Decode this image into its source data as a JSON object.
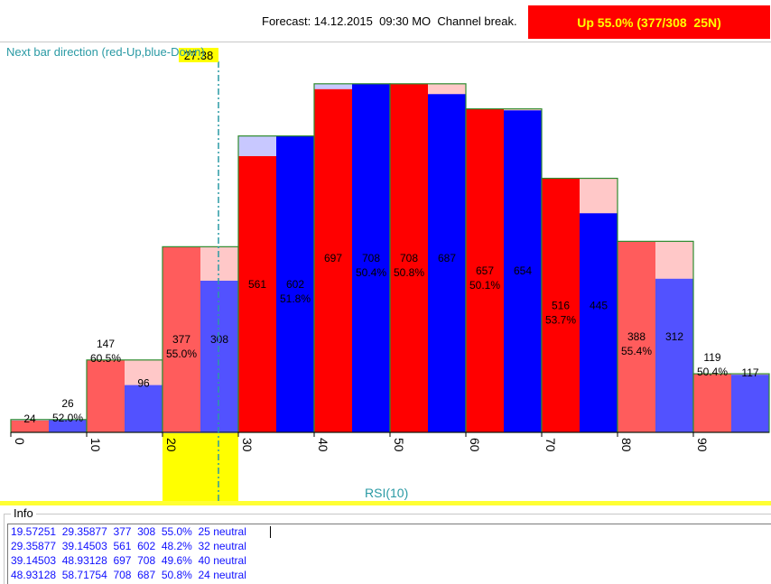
{
  "header": {
    "forecast_text": "Forecast: 14.12.2015  09:30 MO  Channel break.",
    "signal_text": "Up 55.0% (377/308  25N)",
    "signal_color": "#ff0000",
    "signal_text_color": "#ffff00"
  },
  "chart_data": {
    "type": "bar",
    "title": "Next bar direction (red-Up,blue-Down)",
    "xlabel": "RSI(10)",
    "ylabel": "",
    "xlim": [
      0,
      100
    ],
    "ylim": [
      0,
      715
    ],
    "x_ticks": [
      "0",
      "10",
      "20",
      "30",
      "40",
      "50",
      "60",
      "70",
      "80",
      "90"
    ],
    "current_marker": {
      "value": 27.38,
      "label": "27.38"
    },
    "bins": [
      {
        "x0": 0,
        "x1": 10,
        "up": 24,
        "down": 26,
        "up_label": "24",
        "down_label": "26",
        "pct_label": "52.0%",
        "pct_side": "down",
        "weak": true
      },
      {
        "x0": 10,
        "x1": 20,
        "up": 147,
        "down": 96,
        "up_label": "147",
        "down_label": "96",
        "pct_label": "60.5%",
        "pct_side": "up",
        "weak": true
      },
      {
        "x0": 20,
        "x1": 30,
        "up": 377,
        "down": 308,
        "up_label": "377",
        "down_label": "308",
        "pct_label": "55.0%",
        "pct_side": "up",
        "weak": true
      },
      {
        "x0": 30,
        "x1": 40,
        "up": 561,
        "down": 602,
        "up_label": "561",
        "down_label": "602",
        "pct_label": "51.8%",
        "pct_side": "down",
        "weak": false
      },
      {
        "x0": 40,
        "x1": 50,
        "up": 697,
        "down": 708,
        "up_label": "697",
        "down_label": "708",
        "pct_label": "50.4%",
        "pct_side": "down",
        "weak": false
      },
      {
        "x0": 50,
        "x1": 60,
        "up": 708,
        "down": 687,
        "up_label": "708",
        "down_label": "687",
        "pct_label": "50.8%",
        "pct_side": "up",
        "weak": false
      },
      {
        "x0": 60,
        "x1": 70,
        "up": 657,
        "down": 654,
        "up_label": "657",
        "down_label": "654",
        "pct_label": "50.1%",
        "pct_side": "up",
        "weak": false
      },
      {
        "x0": 70,
        "x1": 80,
        "up": 516,
        "down": 445,
        "up_label": "516",
        "down_label": "445",
        "pct_label": "53.7%",
        "pct_side": "up",
        "weak": false
      },
      {
        "x0": 80,
        "x1": 90,
        "up": 388,
        "down": 312,
        "up_label": "388",
        "down_label": "312",
        "pct_label": "55.4%",
        "pct_side": "up",
        "weak": true
      },
      {
        "x0": 90,
        "x1": 100,
        "up": 119,
        "down": 117,
        "up_label": "119",
        "down_label": "117",
        "pct_label": "50.4%",
        "pct_side": "up",
        "weak": true
      }
    ],
    "colors": {
      "up_strong": "#ff0000",
      "up_weak": "#ff5c5c",
      "down_strong": "#0000ff",
      "down_weak": "#5252ff",
      "up_ghost": "#ffc8c8",
      "down_ghost": "#c8c8ff",
      "bin_border": "#2e8b2e",
      "marker_band": "#ffff00",
      "marker_line": "#2a9aa4"
    }
  },
  "info": {
    "title": "Info",
    "lines": [
      "19.57251  29.35877  377  308  55.0%  25 neutral",
      "29.35877  39.14503  561  602  48.2%  32 neutral",
      "39.14503  48.93128  697  708  49.6%  40 neutral",
      "48.93128  58.71754  708  687  50.8%  24 neutral"
    ]
  }
}
